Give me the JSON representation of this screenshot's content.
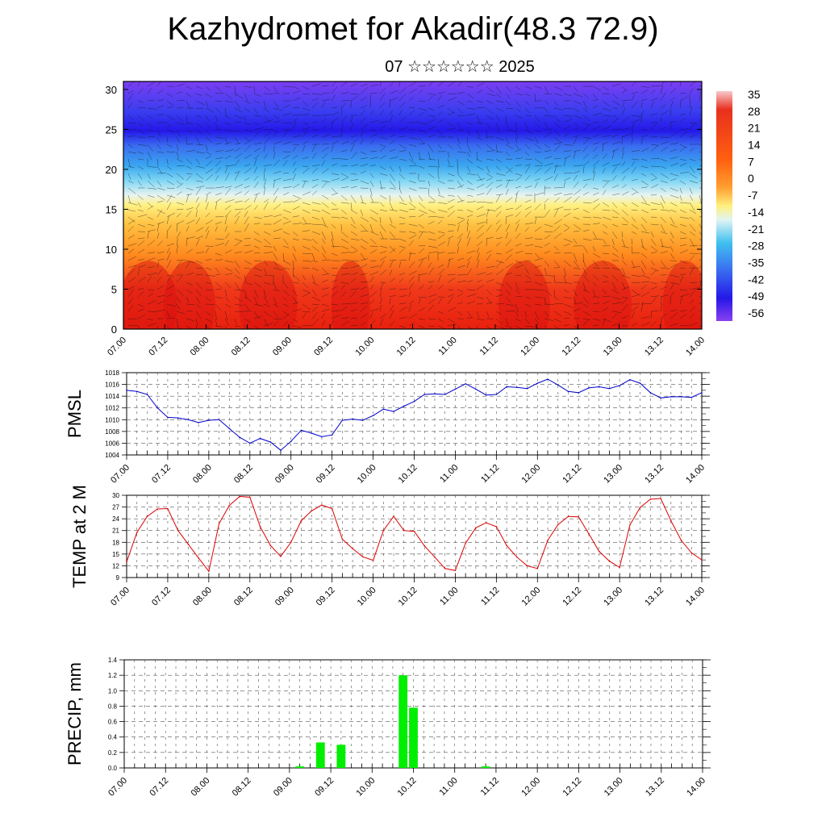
{
  "header": {
    "title": "Kazhydromet for Akadir(48.3 72.9)",
    "subtitle": "07 ☆☆☆☆☆☆ 2025"
  },
  "time_ticks": [
    "07.00",
    "07.12",
    "08.00",
    "08.12",
    "09.00",
    "09.12",
    "10.00",
    "10.12",
    "11.00",
    "11.12",
    "12.00",
    "12.12",
    "13.00",
    "13.12",
    "14.00"
  ],
  "chart_data": [
    {
      "type": "heatmap",
      "name": "temperature-cross-section",
      "x_ticks": [
        "07.00",
        "07.12",
        "08.00",
        "08.12",
        "09.00",
        "09.12",
        "10.00",
        "10.12",
        "11.00",
        "11.12",
        "12.00",
        "12.12",
        "13.00",
        "13.12",
        "14.00"
      ],
      "y_ticks": [
        0,
        5,
        10,
        15,
        20,
        25,
        30
      ],
      "ylim": [
        0,
        31
      ],
      "colorbar_labels": [
        "35",
        "28",
        "21",
        "14",
        "7",
        "0",
        "-7",
        "-14",
        "-21",
        "-28",
        "-35",
        "-42",
        "-49",
        "-56"
      ],
      "colors": {
        "warm": "#e8200e",
        "orange": "#ff8a1e",
        "yellow": "#fff080",
        "lightblue": "#7fd6f5",
        "blue": "#3a6cf0",
        "darkblue": "#2418e8",
        "violet": "#7a3ef2"
      },
      "overlay": "wind vectors"
    },
    {
      "type": "line",
      "ylabel": "PMSL",
      "color": "#0000cc",
      "ylim": [
        1004,
        1018
      ],
      "y_ticks": [
        1004,
        1006,
        1008,
        1010,
        1012,
        1014,
        1016,
        1018
      ],
      "values": [
        1015.0,
        1014.8,
        1014.3,
        1012.0,
        1010.4,
        1010.3,
        1010.0,
        1009.5,
        1009.9,
        1010.0,
        1008.5,
        1007.0,
        1006.0,
        1006.8,
        1006.2,
        1004.8,
        1006.3,
        1008.2,
        1007.7,
        1007.1,
        1007.4,
        1009.9,
        1010.1,
        1009.9,
        1010.7,
        1011.8,
        1011.4,
        1012.3,
        1013.1,
        1014.3,
        1014.4,
        1014.3,
        1015.2,
        1016.1,
        1015.2,
        1014.2,
        1014.3,
        1015.6,
        1015.5,
        1015.3,
        1016.2,
        1016.9,
        1015.9,
        1014.8,
        1014.6,
        1015.4,
        1015.6,
        1015.3,
        1015.8,
        1016.8,
        1016.2,
        1014.6,
        1013.7,
        1013.9,
        1013.9,
        1013.8,
        1014.6
      ]
    },
    {
      "type": "line",
      "ylabel": "TEMP at 2 M",
      "color": "#dd0000",
      "ylim": [
        9,
        30
      ],
      "y_ticks": [
        9,
        12,
        15,
        18,
        21,
        24,
        27,
        30
      ],
      "values": [
        13.0,
        20.5,
        24.6,
        26.5,
        26.6,
        21.0,
        17.5,
        14.0,
        10.6,
        22.8,
        27.4,
        29.7,
        29.5,
        22.0,
        17.2,
        14.4,
        18.0,
        23.5,
        26.0,
        27.5,
        26.6,
        18.8,
        16.4,
        14.3,
        13.4,
        21.0,
        24.6,
        21.0,
        20.8,
        17.1,
        14.2,
        11.3,
        10.8,
        17.8,
        21.7,
        23.0,
        22.0,
        17.2,
        14.2,
        12.0,
        11.3,
        18.5,
        22.5,
        24.6,
        24.5,
        20.2,
        15.7,
        13.2,
        11.6,
        22.4,
        26.9,
        29.0,
        29.2,
        23.5,
        18.5,
        15.3,
        13.5
      ]
    },
    {
      "type": "bar",
      "ylabel": "PRECIP, mm",
      "color": "#00ee00",
      "ylim": [
        0,
        1.4
      ],
      "y_ticks": [
        "0.0",
        "0.2",
        "0.4",
        "0.6",
        "0.8",
        "1.0",
        "1.2",
        "1.4"
      ],
      "bars": [
        {
          "x": 17,
          "value": 0.02
        },
        {
          "x": 19,
          "value": 0.33
        },
        {
          "x": 21,
          "value": 0.3
        },
        {
          "x": 27,
          "value": 1.2
        },
        {
          "x": 28,
          "value": 0.78
        },
        {
          "x": 35,
          "value": 0.02
        }
      ]
    }
  ]
}
